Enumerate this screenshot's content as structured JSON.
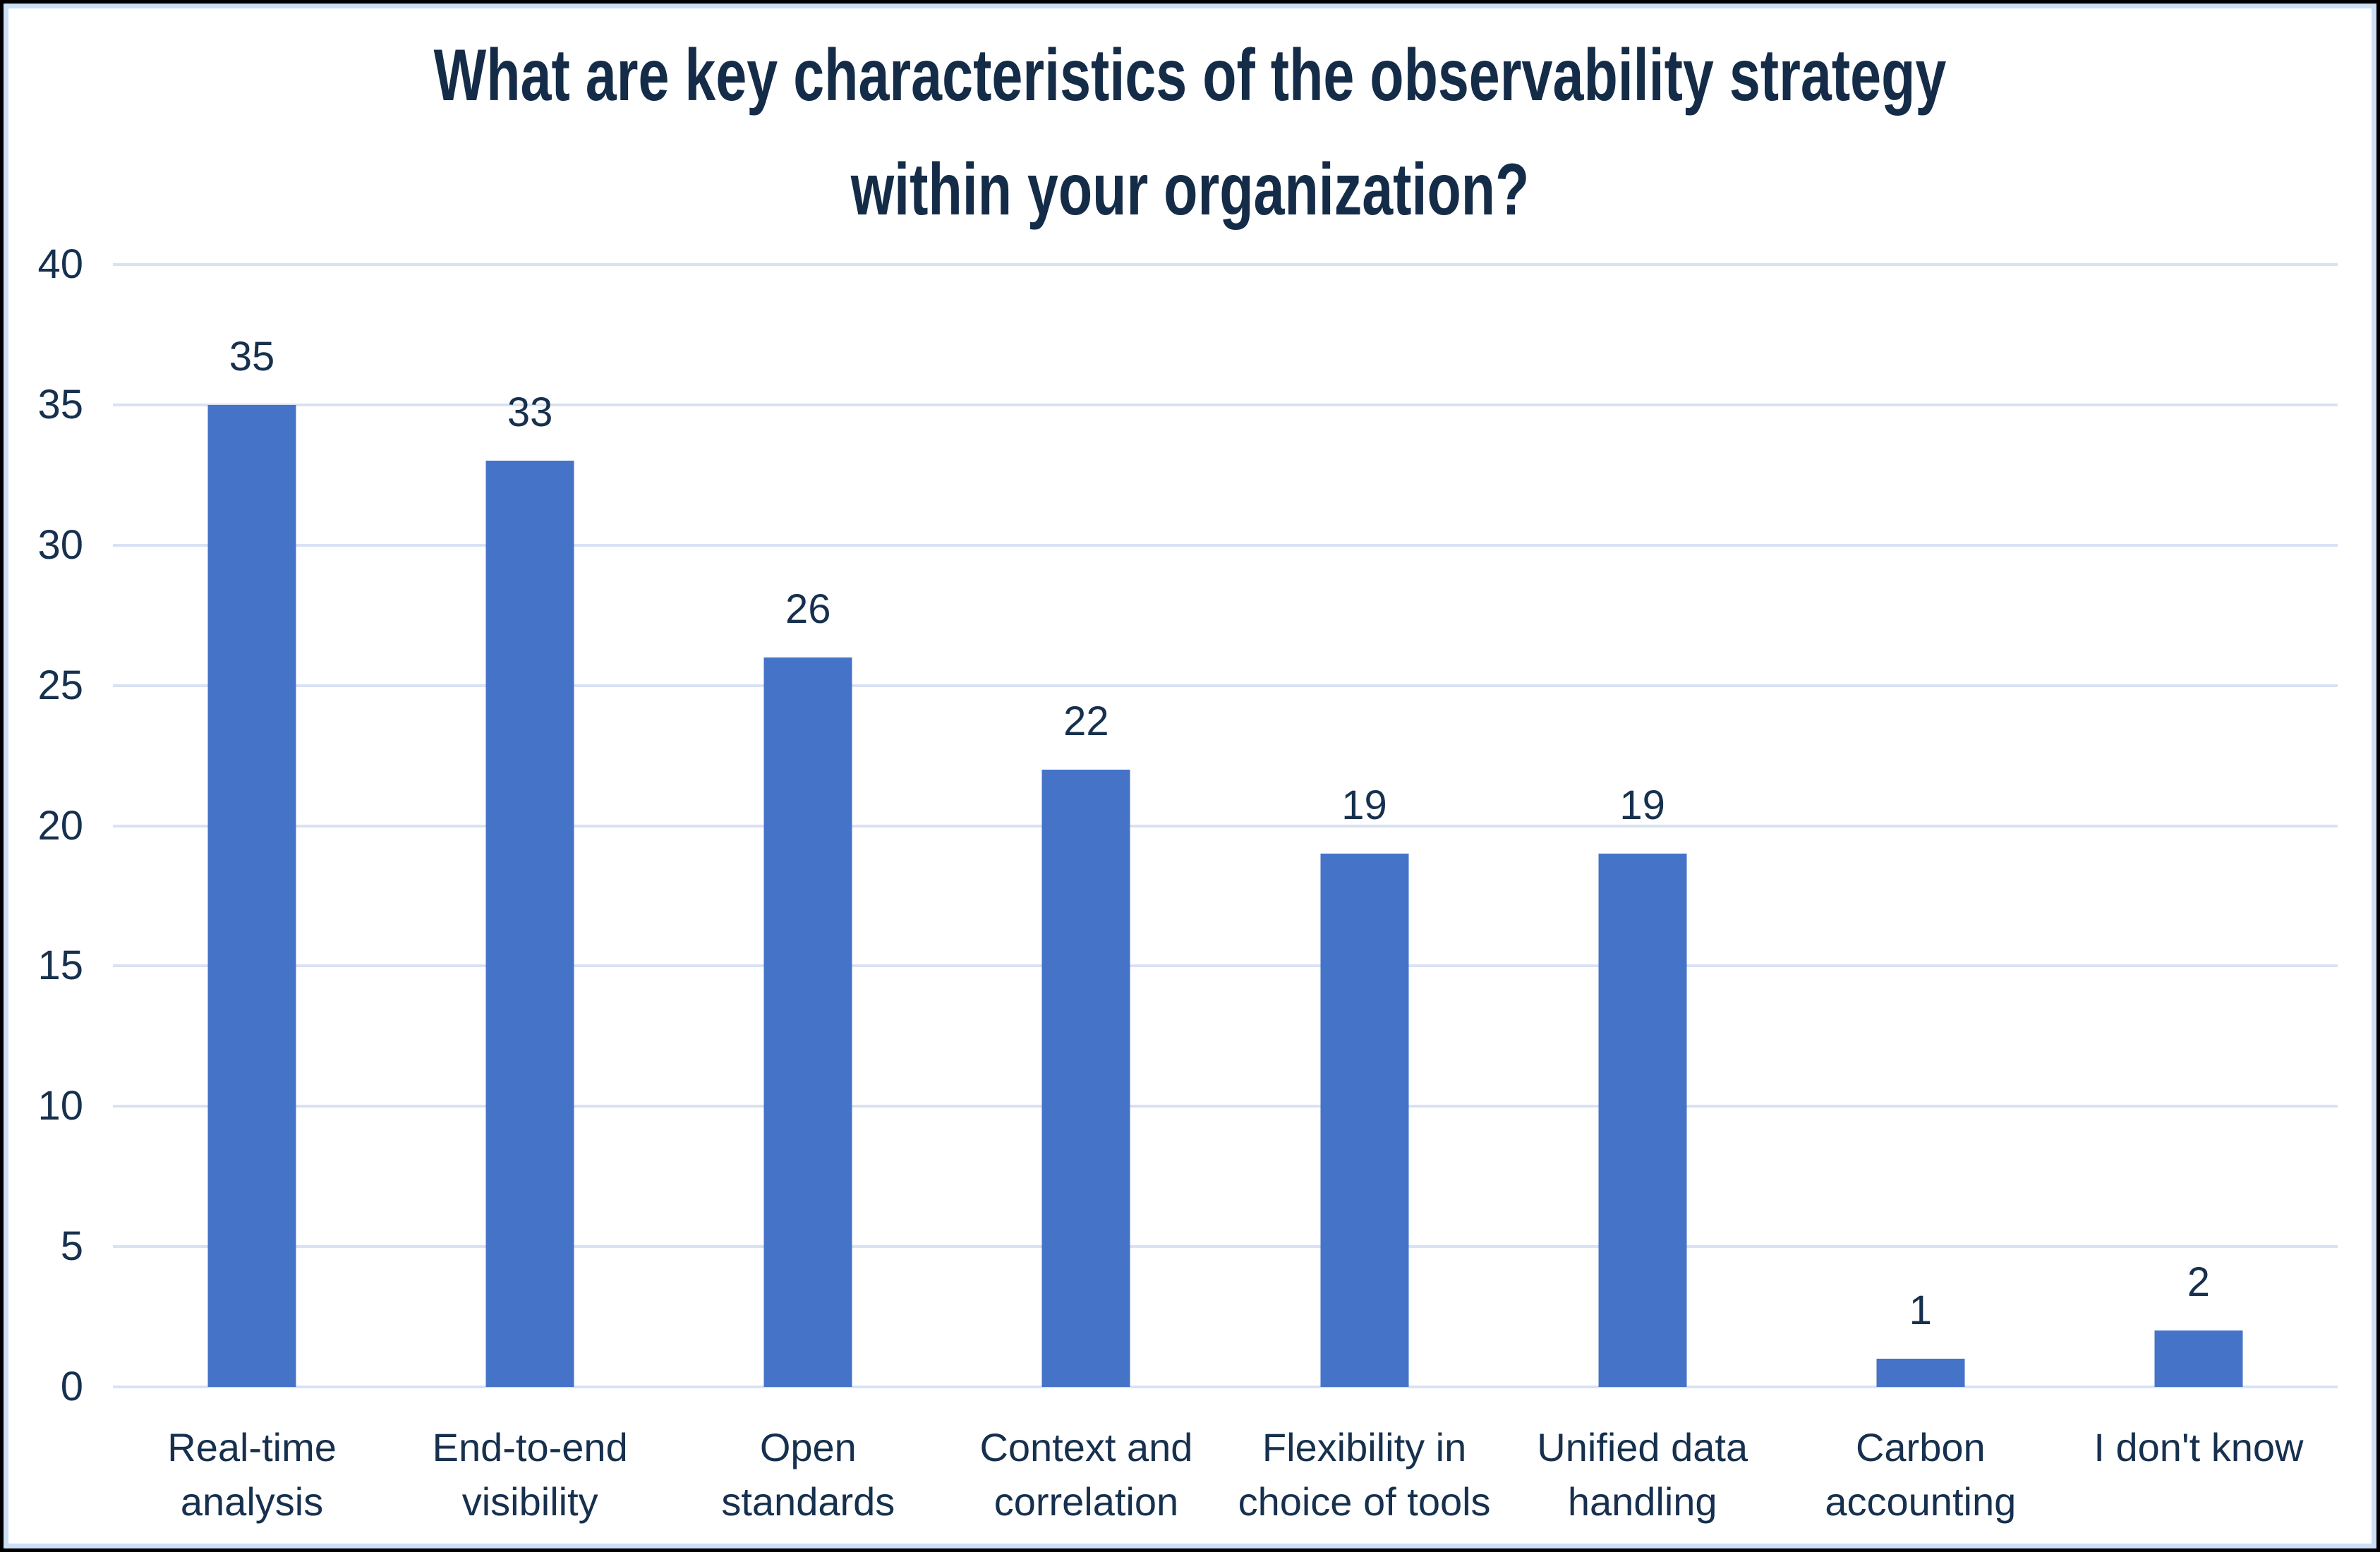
{
  "page": {
    "background_color": "#ffffff",
    "outer_border_color": "#000000",
    "inner_border_color": "#cddff4"
  },
  "chart_data": {
    "type": "bar",
    "title": "What are key characteristics of the observability strategy within your organization?",
    "title_lines": [
      "What are key characteristics of the observability strategy",
      "within your organization?"
    ],
    "categories": [
      "Real-time analysis",
      "End-to-end visibility",
      "Open standards",
      "Context and correlation",
      "Flexibility in choice of tools",
      "Unified data handling",
      "Carbon accounting",
      "I don't know"
    ],
    "category_lines": [
      [
        "Real-time",
        "analysis"
      ],
      [
        "End-to-end",
        "visibility"
      ],
      [
        "Open",
        "standards"
      ],
      [
        "Context and",
        "correlation"
      ],
      [
        "Flexibility in",
        "choice of tools"
      ],
      [
        "Unified data",
        "handling"
      ],
      [
        "Carbon",
        "accounting"
      ],
      [
        "I don't know"
      ]
    ],
    "values": [
      35,
      33,
      26,
      22,
      19,
      19,
      1,
      2
    ],
    "data_labels_shown": true,
    "xlabel": "",
    "ylabel": "",
    "ylim": [
      0,
      40
    ],
    "yticks": [
      0,
      5,
      10,
      15,
      20,
      25,
      30,
      35,
      40
    ],
    "grid": "horizontal",
    "legend": "none",
    "bar_color": "#4473c8",
    "grid_color": "#d9e2f3",
    "text_color": "#16304e",
    "title_color": "#142c47"
  }
}
